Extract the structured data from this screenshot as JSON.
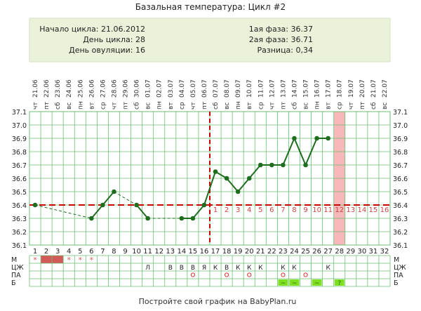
{
  "title": "Базальная температура: Цикл #2",
  "info": {
    "cycle_start": "Начало цикла: 21.06.2012",
    "cycle_day": "День цикла: 28",
    "ovulation_day": "День овуляции: 16",
    "phase1": "1ая фаза: 36.37",
    "phase2": "2ая фаза: 36.71",
    "difference": "Разница: 0,34"
  },
  "footer": "Постройте свой график на BabyPlan.ru",
  "colors": {
    "grid": "#6bbf73",
    "line": "#1f6e1f",
    "coverline": "#cc0000",
    "panel": "#eaf3d9",
    "menses": "#d45a5a",
    "highlight": "#f6b8b8",
    "green_cell": "#7ee020"
  },
  "chart_data": {
    "type": "line",
    "ylim": [
      36.1,
      37.1
    ],
    "yticks": [
      "37.1",
      "37.0",
      "36.9",
      "36.8",
      "36.7",
      "36.6",
      "36.5",
      "36.4",
      "36.3",
      "36.2",
      "36.1"
    ],
    "days": [
      "1",
      "2",
      "3",
      "4",
      "5",
      "6",
      "7",
      "8",
      "9",
      "10",
      "11",
      "12",
      "13",
      "14",
      "15",
      "16",
      "17",
      "18",
      "19",
      "20",
      "21",
      "22",
      "23",
      "24",
      "25",
      "26",
      "27",
      "28",
      "29",
      "30",
      "31",
      "32"
    ],
    "weekdays": [
      "чт",
      "пт",
      "сб",
      "вс",
      "пн",
      "вт",
      "ср",
      "чт",
      "пт",
      "сб",
      "вс",
      "пн",
      "вт",
      "ср",
      "чт",
      "пт",
      "сб",
      "вс",
      "пн",
      "вт",
      "ср",
      "чт",
      "пт",
      "сб",
      "вс",
      "пн",
      "вт",
      "ср",
      "чт",
      "пт",
      "сб",
      "вс"
    ],
    "dates": [
      "21.06",
      "22.06",
      "23.06",
      "24.06",
      "25.06",
      "26.06",
      "27.06",
      "28.06",
      "29.06",
      "30.06",
      "01.07",
      "02.07",
      "03.07",
      "04.07",
      "05.07",
      "06.07",
      "07.07",
      "08.07",
      "09.07",
      "10.07",
      "11.07",
      "12.07",
      "13.07",
      "14.07",
      "15.07",
      "16.07",
      "17.07",
      "18.07",
      "19.07",
      "20.07",
      "21.07",
      "22.07"
    ],
    "temperatures": [
      36.4,
      null,
      null,
      null,
      null,
      36.3,
      36.4,
      36.5,
      null,
      36.4,
      36.3,
      null,
      null,
      36.3,
      36.3,
      36.4,
      36.65,
      36.6,
      36.5,
      36.6,
      36.7,
      36.7,
      36.7,
      36.9,
      36.7,
      36.9,
      36.9,
      null,
      null,
      null,
      null,
      null
    ],
    "coverline": 36.4,
    "ovulation_day": 16,
    "current_day": 28,
    "luteal_days": [
      "1",
      "2",
      "3",
      "4",
      "5",
      "6",
      "7",
      "8",
      "9",
      "10",
      "11",
      "12",
      "13",
      "14",
      "15",
      "16"
    ],
    "moon_day": 15,
    "row_labels": [
      "М",
      "ЦЖ",
      "ПА",
      "Б"
    ],
    "menses": [
      "*",
      "",
      "",
      "*",
      "*",
      "*"
    ],
    "cm": {
      "11": "Л",
      "13": "В",
      "14": "В",
      "15": "В",
      "16": "Я",
      "17": "К",
      "18": "В",
      "19": "К",
      "20": "К",
      "21": "К",
      "23": "К",
      "24": "К",
      "27": "К"
    },
    "pa_days": [
      15,
      18,
      20,
      23,
      25
    ],
    "test_days": {
      "23": "~",
      "24": "~",
      "26": "~",
      "28": "?"
    }
  }
}
